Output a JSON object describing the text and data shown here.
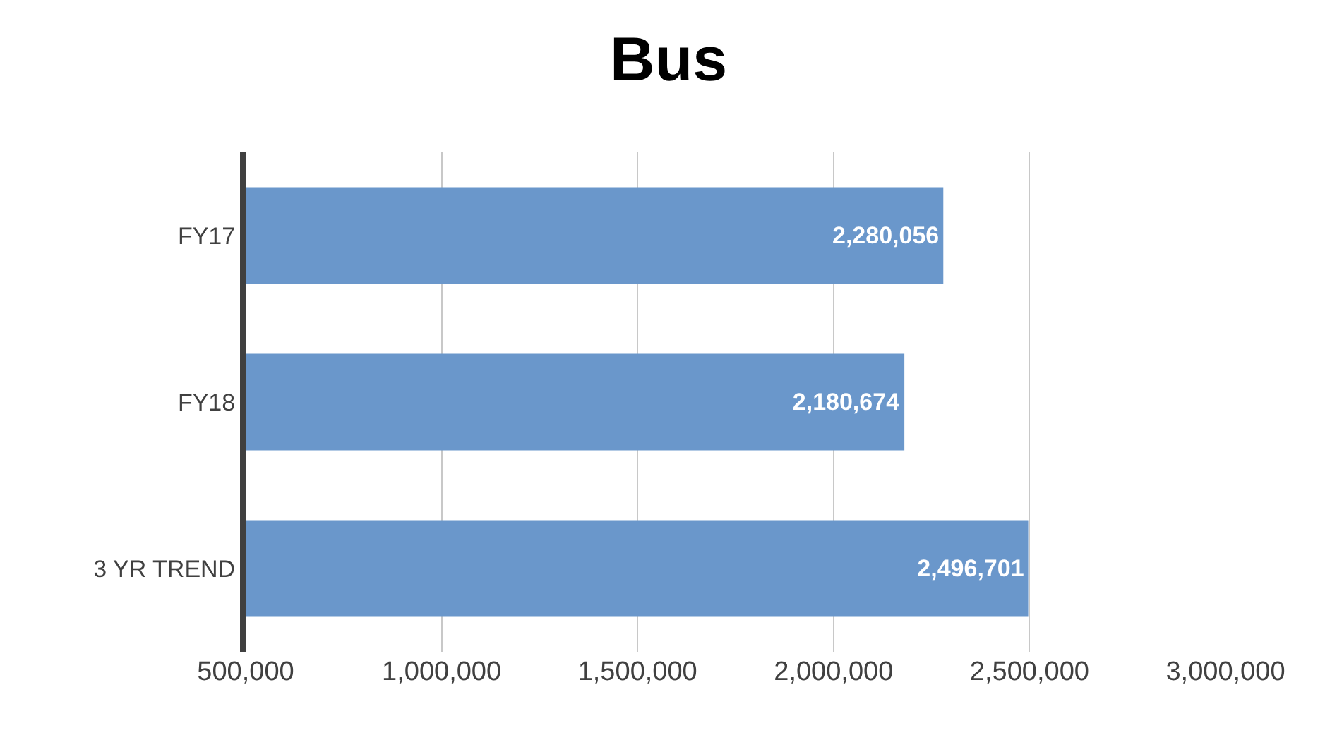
{
  "chart_data": {
    "type": "bar",
    "title": "Bus",
    "orientation": "horizontal",
    "categories": [
      "FY17",
      "FY18",
      "3 YR TREND"
    ],
    "values": [
      2280056,
      2180674,
      2496701
    ],
    "color": "#6a97cb",
    "xlim": [
      500000,
      3000000
    ],
    "xticks": [
      {
        "value": 500000,
        "label": "500,000"
      },
      {
        "value": 1000000,
        "label": "1,000,000"
      },
      {
        "value": 1500000,
        "label": "1,500,000"
      },
      {
        "value": 2000000,
        "label": "2,000,000"
      },
      {
        "value": 2500000,
        "label": "2,500,000"
      },
      {
        "value": 3000000,
        "label": "3,000,000"
      }
    ],
    "value_labels": [
      "2,280,056",
      "2,180,674",
      "2,496,701"
    ],
    "grid": "x"
  }
}
